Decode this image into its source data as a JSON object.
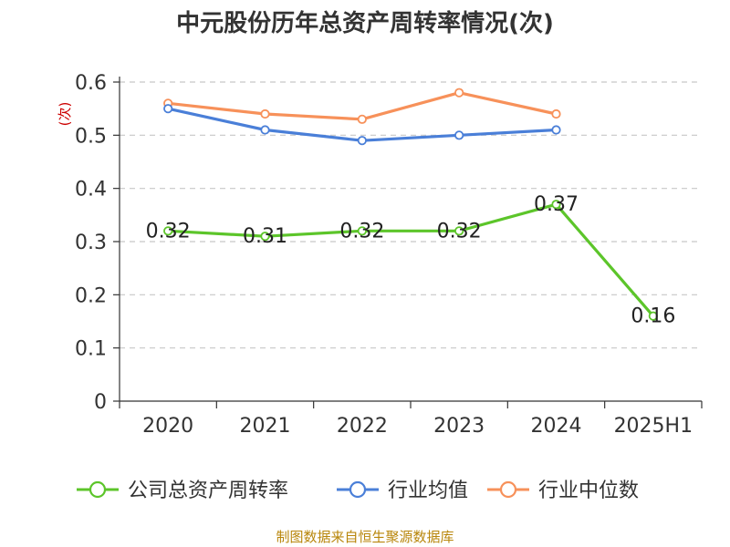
{
  "chart_data": {
    "type": "line",
    "title": "中元股份历年总资产周转率情况(次)",
    "ylabel": "(次)",
    "categories": [
      "2020",
      "2021",
      "2022",
      "2023",
      "2024",
      "2025H1"
    ],
    "y_ticks": [
      "0",
      "0.1",
      "0.2",
      "0.3",
      "0.4",
      "0.5",
      "0.6"
    ],
    "ylim": [
      0,
      0.6
    ],
    "grid": true,
    "legend_position": "bottom",
    "series": [
      {
        "name": "公司总资产周转率",
        "color": "#5cc52a",
        "values": [
          0.32,
          0.31,
          0.32,
          0.32,
          0.37,
          0.16
        ],
        "labels": [
          "0.32",
          "0.31",
          "0.32",
          "0.32",
          "0.37",
          "0.16"
        ]
      },
      {
        "name": "行业均值",
        "color": "#4a7fd8",
        "values": [
          0.55,
          0.51,
          0.49,
          0.5,
          0.51,
          null
        ]
      },
      {
        "name": "行业中位数",
        "color": "#f7915a",
        "values": [
          0.56,
          0.54,
          0.53,
          0.58,
          0.54,
          null
        ]
      }
    ]
  },
  "source": "制图数据来自恒生聚源数据库"
}
